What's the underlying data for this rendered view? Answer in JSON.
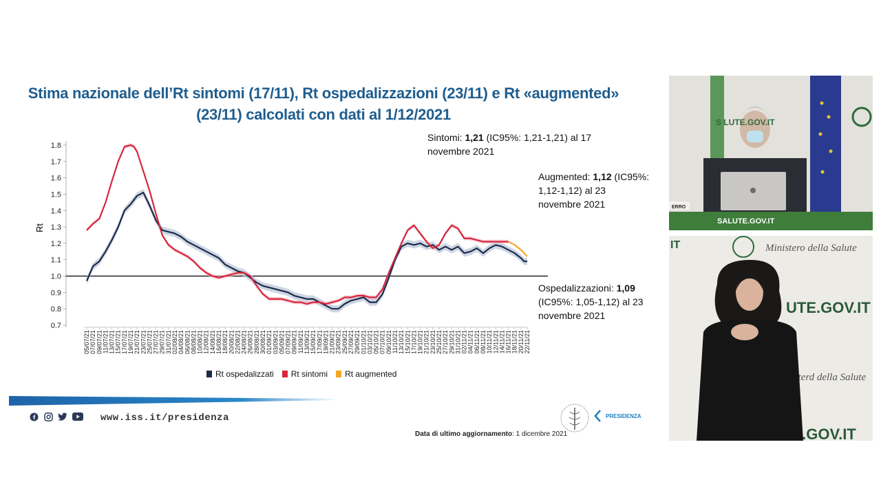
{
  "title": {
    "line1": "Stima nazionale dell’Rt sintomi (17/11), Rt ospedalizzazioni (23/11) e Rt «augmented»",
    "line2": "(23/11) calcolati con dati al 1/12/2021"
  },
  "annotations": {
    "sintomi": {
      "pre": "Sintomi: ",
      "value": "1,21",
      "post": " (IC95%: 1,21-1,21) al 17",
      "line2": "novembre 2021"
    },
    "augmented": {
      "pre": "Augmented: ",
      "value": "1,12",
      "post": " (IC95%:",
      "line2": "1,12-1,12) al 23",
      "line3": "novembre 2021"
    },
    "ospedalizzazioni": {
      "pre": "Ospedalizzazioni: ",
      "value": "1,09",
      "line2": "(IC95%: 1,05-1,12) al 23",
      "line3": "novembre 2021"
    }
  },
  "legend": {
    "ospedalizzati": "Rt ospedalizzati",
    "sintomi": "Rt sintomi",
    "augmented": "Rt augmented"
  },
  "footer": {
    "url": "www.iss.it/presidenza",
    "updated_label": "Data di ultimo aggiornamento",
    "updated_value": ": 1 dicembre 2021",
    "presidenza": "PRESIDENZA",
    "social_icons": [
      "facebook-icon",
      "instagram-icon",
      "twitter-icon",
      "youtube-icon"
    ]
  },
  "video": {
    "top_banner": "SALUTE.GOV.IT",
    "top_nameplate": "ERRO",
    "top_sign": "S  LUTE.GOV.IT",
    "bottom_text1": "Ministero della Salute",
    "bottom_text2": "UTE.GOV.IT",
    "bottom_text3": "TE.GOV.IT",
    "bottom_text4": "nisterd della Salute",
    "bottom_text5": "IT"
  },
  "colors": {
    "title": "#1f5d8e",
    "ospedalizzati": "#1b2a4a",
    "sintomi": "#d7263d",
    "augmented": "#f5a623",
    "band": "#c5d0de",
    "brand_blue": "#1f80c4"
  },
  "chart_data": {
    "type": "line",
    "title": "",
    "ylabel": "Rt",
    "xlabel": "",
    "ylim": [
      0.7,
      1.85
    ],
    "yticks": [
      0.7,
      0.8,
      0.9,
      1.0,
      1.1,
      1.2,
      1.3,
      1.4,
      1.5,
      1.6,
      1.7,
      1.8
    ],
    "ytick_labels": [
      "0.7",
      "0.8",
      "0.9",
      "1.0",
      "1.1",
      "1.2",
      "1.3",
      "1.4",
      "1.5",
      "1.6",
      "1.7",
      "1.8"
    ],
    "reference_line": 1.0,
    "xticks": [
      "05/07/21",
      "07/07/21",
      "09/07/21",
      "11/07/21",
      "13/07/21",
      "15/07/21",
      "17/07/21",
      "19/07/21",
      "21/07/21",
      "23/07/21",
      "25/07/21",
      "27/07/21",
      "29/07/21",
      "31/07/21",
      "02/08/21",
      "04/08/21",
      "06/08/21",
      "08/08/21",
      "10/08/21",
      "12/08/21",
      "14/08/21",
      "16/08/21",
      "18/08/21",
      "20/08/21",
      "22/08/21",
      "24/08/21",
      "26/08/21",
      "28/08/21",
      "30/08/21",
      "01/09/21",
      "03/09/21",
      "05/09/21",
      "07/09/21",
      "09/09/21",
      "11/09/21",
      "13/09/21",
      "15/09/21",
      "17/09/21",
      "19/09/21",
      "21/09/21",
      "23/09/21",
      "25/09/21",
      "27/09/21",
      "29/09/21",
      "01/10/21",
      "03/10/21",
      "05/10/21",
      "07/10/21",
      "09/10/21",
      "11/10/21",
      "13/10/21",
      "15/10/21",
      "17/10/21",
      "19/10/21",
      "21/10/21",
      "23/10/21",
      "25/10/21",
      "27/10/21",
      "29/10/21",
      "31/10/21",
      "02/11/21",
      "04/11/21",
      "06/11/21",
      "08/11/21",
      "10/11/21",
      "12/11/21",
      "14/11/21",
      "16/11/21",
      "18/11/21",
      "20/11/21",
      "22/11/21"
    ],
    "series": [
      {
        "name": "Rt ospedalizzati",
        "color": "#1b2a4a",
        "x_index": [
          0,
          2,
          4,
          6,
          8,
          10,
          12,
          14,
          16,
          17,
          18,
          20,
          22,
          24,
          26,
          28,
          30,
          32,
          34,
          36,
          38,
          40,
          42,
          43,
          44,
          46,
          48,
          50,
          52,
          54,
          56,
          58,
          60,
          62,
          64,
          66,
          68,
          70,
          72,
          74,
          76,
          78,
          80,
          82,
          84,
          86,
          88,
          90,
          92,
          94,
          96,
          98,
          100,
          102,
          104,
          106,
          108,
          110,
          112,
          114,
          116,
          118,
          120,
          122,
          124,
          126,
          128,
          130,
          132,
          134,
          136,
          138,
          139,
          140
        ],
        "values": [
          0.97,
          1.06,
          1.09,
          1.15,
          1.22,
          1.3,
          1.4,
          1.44,
          1.49,
          1.5,
          1.51,
          1.43,
          1.34,
          1.28,
          1.27,
          1.26,
          1.24,
          1.21,
          1.19,
          1.17,
          1.15,
          1.13,
          1.11,
          1.09,
          1.07,
          1.05,
          1.03,
          1.02,
          0.99,
          0.96,
          0.94,
          0.93,
          0.92,
          0.91,
          0.9,
          0.88,
          0.87,
          0.86,
          0.86,
          0.84,
          0.82,
          0.8,
          0.8,
          0.83,
          0.85,
          0.86,
          0.87,
          0.84,
          0.84,
          0.89,
          0.99,
          1.1,
          1.18,
          1.2,
          1.19,
          1.2,
          1.18,
          1.19,
          1.16,
          1.18,
          1.16,
          1.18,
          1.14,
          1.15,
          1.17,
          1.14,
          1.17,
          1.19,
          1.18,
          1.16,
          1.14,
          1.11,
          1.09,
          1.09
        ]
      },
      {
        "name": "Rt sintomi",
        "color": "#d7263d",
        "x_index": [
          0,
          2,
          4,
          6,
          8,
          10,
          12,
          14,
          15,
          16,
          17,
          18,
          20,
          22,
          24,
          26,
          28,
          30,
          32,
          34,
          36,
          38,
          40,
          42,
          44,
          46,
          48,
          50,
          52,
          54,
          56,
          58,
          60,
          62,
          64,
          66,
          68,
          70,
          72,
          74,
          76,
          78,
          80,
          82,
          84,
          86,
          88,
          90,
          92,
          94,
          96,
          98,
          100,
          102,
          104,
          106,
          108,
          110,
          112,
          114,
          116,
          118,
          120,
          122,
          124,
          126,
          128,
          130,
          132,
          134
        ],
        "values": [
          1.28,
          1.32,
          1.35,
          1.45,
          1.58,
          1.7,
          1.79,
          1.8,
          1.79,
          1.76,
          1.7,
          1.64,
          1.52,
          1.38,
          1.25,
          1.19,
          1.16,
          1.14,
          1.12,
          1.09,
          1.05,
          1.02,
          1.0,
          0.99,
          1.0,
          1.01,
          1.02,
          1.02,
          1.0,
          0.94,
          0.89,
          0.86,
          0.86,
          0.86,
          0.85,
          0.84,
          0.84,
          0.83,
          0.84,
          0.84,
          0.83,
          0.84,
          0.85,
          0.87,
          0.87,
          0.88,
          0.88,
          0.87,
          0.87,
          0.92,
          1.02,
          1.11,
          1.2,
          1.28,
          1.31,
          1.26,
          1.21,
          1.17,
          1.19,
          1.26,
          1.31,
          1.29,
          1.23,
          1.23,
          1.22,
          1.21,
          1.21,
          1.21,
          1.21,
          1.21
        ]
      },
      {
        "name": "Rt augmented",
        "color": "#f5a623",
        "x_index": [
          134,
          136,
          138,
          140
        ],
        "values": [
          1.21,
          1.19,
          1.16,
          1.12
        ]
      }
    ]
  }
}
